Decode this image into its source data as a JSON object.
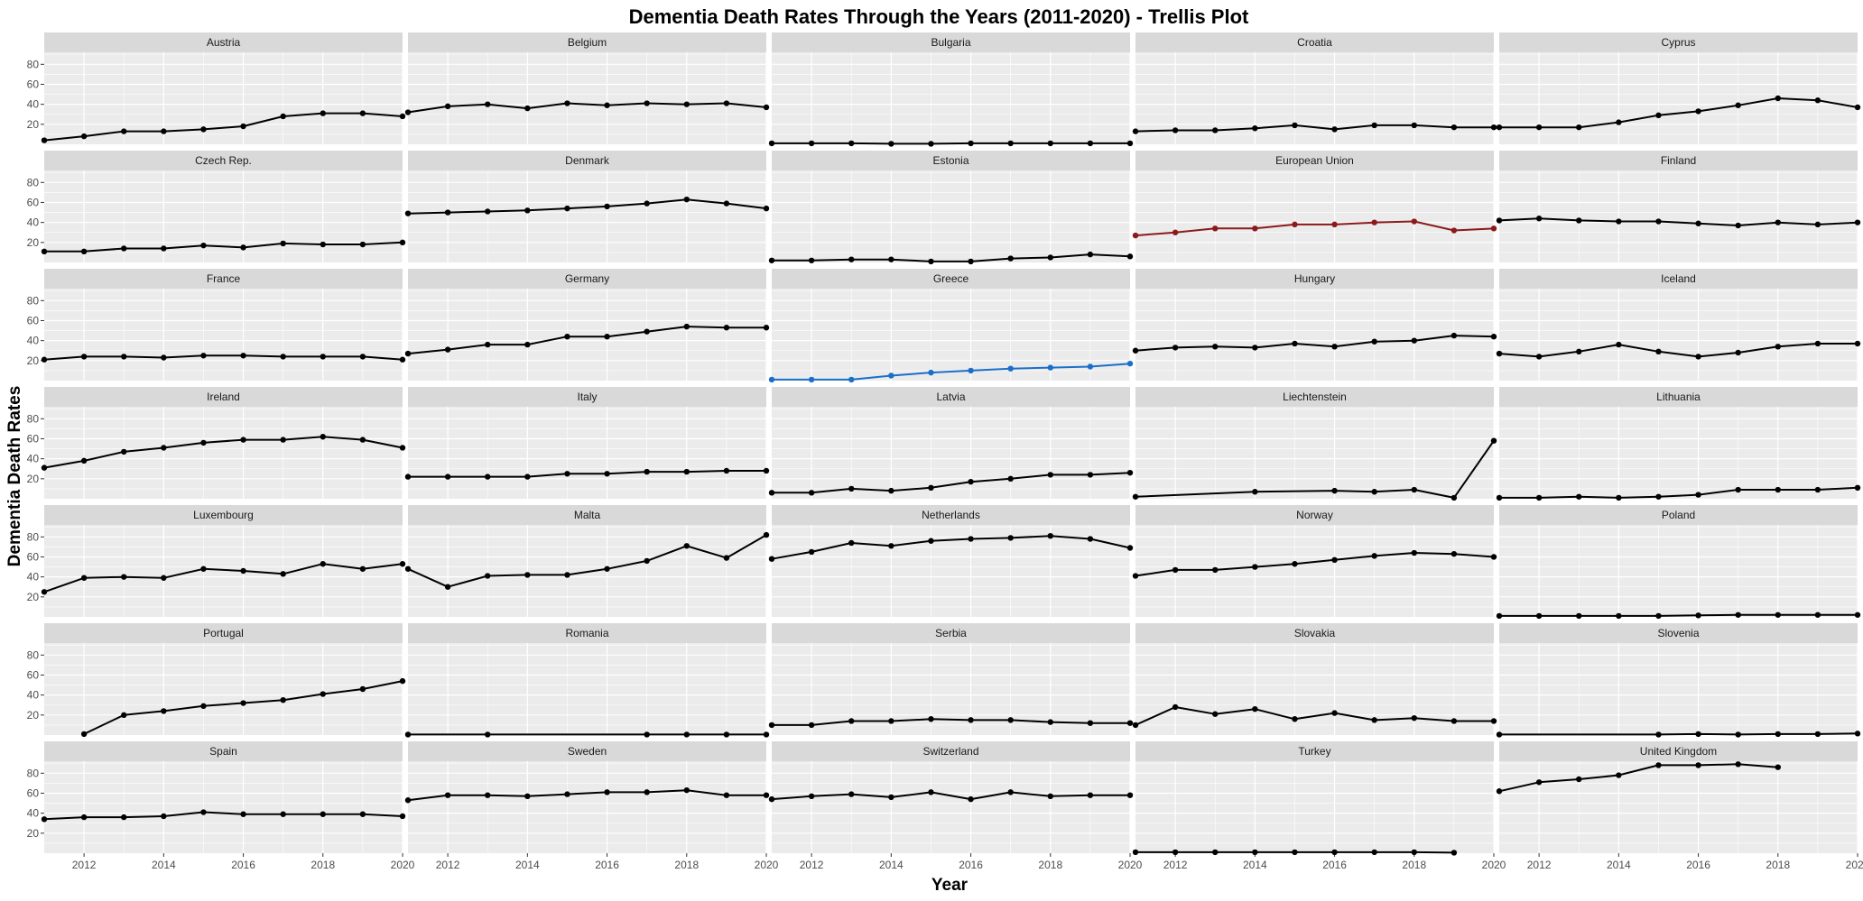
{
  "chart_data": {
    "type": "line",
    "title": "Dementia Death Rates Through the Years (2011-2020) - Trellis Plot",
    "xlabel": "Year",
    "ylabel": "Dementia Death Rates",
    "x": [
      2011,
      2012,
      2013,
      2014,
      2015,
      2016,
      2017,
      2018,
      2019,
      2020
    ],
    "xlim": [
      2011,
      2020
    ],
    "ylim": [
      0,
      92
    ],
    "x_ticks": [
      2012,
      2014,
      2016,
      2018,
      2020
    ],
    "x_tick_labels": [
      "2012",
      "2014",
      "2016",
      "2018",
      "2020"
    ],
    "y_ticks": [
      20,
      40,
      60,
      80
    ],
    "y_tick_labels": [
      "20",
      "40",
      "60",
      "80"
    ],
    "grid": true,
    "legend": "none",
    "colors": {
      "default": "#000000",
      "European Union": "#8b1a1a",
      "Greece": "#1a6fc9",
      "panel_background": "#ebebeb",
      "strip_background": "#d9d9d9",
      "grid": "#ffffff"
    },
    "series": [
      {
        "name": "Austria",
        "values": [
          4,
          8,
          13,
          13,
          15,
          18,
          28,
          31,
          31,
          28
        ]
      },
      {
        "name": "Belgium",
        "values": [
          32,
          38,
          40,
          36,
          41,
          39,
          41,
          40,
          41,
          37
        ]
      },
      {
        "name": "Bulgaria",
        "values": [
          1,
          1,
          1,
          0.5,
          0.5,
          1,
          1,
          1,
          1,
          1
        ]
      },
      {
        "name": "Croatia",
        "values": [
          13,
          14,
          14,
          16,
          19,
          15,
          19,
          19,
          17,
          17
        ]
      },
      {
        "name": "Cyprus",
        "values": [
          17,
          17,
          17,
          22,
          29,
          33,
          39,
          46,
          44,
          37
        ]
      },
      {
        "name": "Czech Rep.",
        "values": [
          11,
          11,
          14,
          14,
          17,
          15,
          19,
          18,
          18,
          20
        ]
      },
      {
        "name": "Denmark",
        "values": [
          49,
          50,
          51,
          52,
          54,
          56,
          59,
          63,
          59,
          54
        ]
      },
      {
        "name": "Estonia",
        "values": [
          2,
          2,
          3,
          3,
          1,
          1,
          4,
          5,
          8,
          6
        ]
      },
      {
        "name": "European Union",
        "values": [
          27,
          30,
          34,
          34,
          38,
          38,
          40,
          41,
          32,
          34
        ]
      },
      {
        "name": "Finland",
        "values": [
          42,
          44,
          42,
          41,
          41,
          39,
          37,
          40,
          38,
          40
        ]
      },
      {
        "name": "France",
        "values": [
          21,
          24,
          24,
          23,
          25,
          25,
          24,
          24,
          24,
          21
        ]
      },
      {
        "name": "Germany",
        "values": [
          27,
          31,
          36,
          36,
          44,
          44,
          49,
          54,
          53,
          53
        ]
      },
      {
        "name": "Greece",
        "values": [
          1,
          1,
          1,
          5,
          8,
          10,
          12,
          13,
          14,
          17
        ]
      },
      {
        "name": "Hungary",
        "values": [
          30,
          33,
          34,
          33,
          37,
          34,
          39,
          40,
          45,
          44
        ]
      },
      {
        "name": "Iceland",
        "values": [
          27,
          24,
          29,
          36,
          29,
          24,
          28,
          34,
          37,
          37
        ]
      },
      {
        "name": "Ireland",
        "values": [
          31,
          38,
          47,
          51,
          56,
          59,
          59,
          62,
          59,
          51
        ]
      },
      {
        "name": "Italy",
        "values": [
          22,
          22,
          22,
          22,
          25,
          25,
          27,
          27,
          28,
          28
        ]
      },
      {
        "name": "Latvia",
        "values": [
          6,
          6,
          10,
          8,
          11,
          17,
          20,
          24,
          24,
          26
        ]
      },
      {
        "name": "Liechtenstein",
        "values": [
          2,
          null,
          null,
          7,
          null,
          8,
          7,
          9,
          1,
          58
        ]
      },
      {
        "name": "Lithuania",
        "values": [
          1,
          1,
          2,
          1,
          2,
          4,
          9,
          9,
          9,
          11
        ]
      },
      {
        "name": "Luxembourg",
        "values": [
          25,
          39,
          40,
          39,
          48,
          46,
          43,
          53,
          48,
          53
        ]
      },
      {
        "name": "Malta",
        "values": [
          48,
          30,
          41,
          42,
          42,
          48,
          56,
          71,
          59,
          82
        ]
      },
      {
        "name": "Netherlands",
        "values": [
          58,
          65,
          74,
          71,
          76,
          78,
          79,
          81,
          78,
          69
        ]
      },
      {
        "name": "Norway",
        "values": [
          41,
          47,
          47,
          50,
          53,
          57,
          61,
          64,
          63,
          60
        ]
      },
      {
        "name": "Poland",
        "values": [
          1,
          1,
          1,
          1,
          1,
          1.5,
          2,
          2,
          2,
          2
        ]
      },
      {
        "name": "Portugal",
        "values": [
          null,
          1,
          20,
          24,
          29,
          32,
          35,
          41,
          46,
          54
        ]
      },
      {
        "name": "Romania",
        "values": [
          0.5,
          null,
          0.5,
          null,
          null,
          null,
          0.5,
          0.5,
          0.5,
          0.5
        ]
      },
      {
        "name": "Serbia",
        "values": [
          10,
          10,
          14,
          14,
          16,
          15,
          15,
          13,
          12,
          12
        ]
      },
      {
        "name": "Slovakia",
        "values": [
          10,
          28,
          21,
          26,
          16,
          22,
          15,
          17,
          14,
          14
        ]
      },
      {
        "name": "Slovenia",
        "values": [
          0.5,
          null,
          null,
          null,
          0.5,
          1,
          0.5,
          1,
          1,
          1.5
        ]
      },
      {
        "name": "Spain",
        "values": [
          34,
          36,
          36,
          37,
          41,
          39,
          39,
          39,
          39,
          37
        ]
      },
      {
        "name": "Sweden",
        "values": [
          53,
          58,
          58,
          57,
          59,
          61,
          61,
          63,
          58,
          58
        ]
      },
      {
        "name": "Switzerland",
        "values": [
          54,
          57,
          59,
          56,
          61,
          54,
          61,
          57,
          58,
          58
        ]
      },
      {
        "name": "Turkey",
        "values": [
          1,
          1,
          1,
          1,
          1,
          1,
          1,
          1,
          0.5,
          null
        ]
      },
      {
        "name": "United Kingdom",
        "values": [
          62,
          71,
          74,
          78,
          88,
          88,
          89,
          86,
          null,
          null
        ]
      }
    ]
  }
}
